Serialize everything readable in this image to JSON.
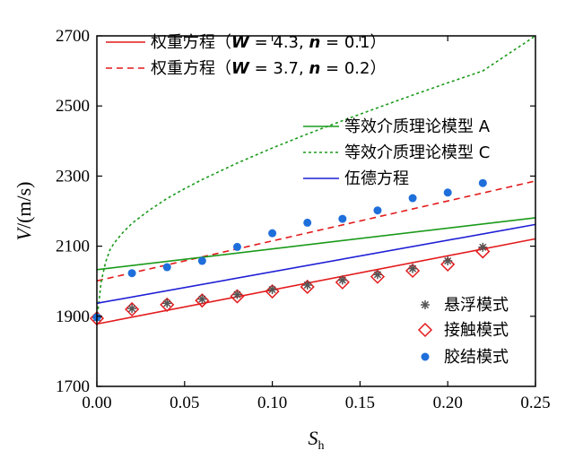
{
  "chart_data": {
    "type": "scatter",
    "xlabel_main": "S",
    "xlabel_sub": "h",
    "ylabel_main": "V",
    "ylabel_unit": "/(m/s)",
    "xlim": [
      0,
      0.25
    ],
    "ylim": [
      1700,
      2700
    ],
    "xticks": [
      "0.00",
      "0.05",
      "0.10",
      "0.15",
      "0.20",
      "0.25"
    ],
    "yticks": [
      "1700",
      "1900",
      "2100",
      "2300",
      "2500",
      "2700"
    ],
    "grid": false,
    "line_series": [
      {
        "name": "权重方程（W = 4.3, n = 0.1）",
        "legend_prefix": "权重方程（",
        "p1": "W",
        "v1": " = 4.3, ",
        "p2": "n",
        "v2": " = 0.1）",
        "color": "#e31a1c",
        "dash": "",
        "x": [
          0,
          0.25
        ],
        "y": [
          1878,
          2121
        ]
      },
      {
        "name": "权重方程（W = 3.7, n = 0.2）",
        "legend_prefix": "权重方程（",
        "p1": "W",
        "v1": " = 3.7, ",
        "p2": "n",
        "v2": " = 0.2）",
        "color": "#e31a1c",
        "dash": "7,5",
        "x": [
          0,
          0.25
        ],
        "y": [
          2001,
          2286
        ]
      },
      {
        "name": "等效介质理论模型 A",
        "color": "#1a9a1a",
        "dash": "",
        "x": [
          0,
          0.25
        ],
        "y": [
          2033,
          2181
        ]
      },
      {
        "name": "等效介质理论模型 C",
        "color": "#1a9a1a",
        "dash": "3,3",
        "x": [
          0,
          0.0025,
          0.005,
          0.0075,
          0.01,
          0.015,
          0.02,
          0.03,
          0.04,
          0.05,
          0.06,
          0.08,
          0.1,
          0.12,
          0.14,
          0.16,
          0.18,
          0.2,
          0.22,
          0.25
        ],
        "y": [
          1890,
          2000,
          2055,
          2090,
          2110,
          2140,
          2165,
          2203,
          2236,
          2264,
          2290,
          2337,
          2380,
          2420,
          2458,
          2495,
          2531,
          2566,
          2600,
          2700
        ]
      },
      {
        "name": "伍德方程",
        "color": "#1f1fd6",
        "dash": "",
        "x": [
          0,
          0.25
        ],
        "y": [
          1937,
          2162
        ]
      }
    ],
    "marker_series": [
      {
        "name": "悬浮模式",
        "marker": "asterisk",
        "color": "#555555",
        "x": [
          0,
          0.02,
          0.04,
          0.06,
          0.08,
          0.1,
          0.12,
          0.14,
          0.16,
          0.18,
          0.2,
          0.22
        ],
        "y": [
          1896,
          1922,
          1937,
          1949,
          1962,
          1976,
          1989,
          2003,
          2019,
          2036,
          2058,
          2097
        ]
      },
      {
        "name": "接触模式",
        "marker": "diamond",
        "color": "#e31a1c",
        "x": [
          0,
          0.02,
          0.04,
          0.06,
          0.08,
          0.1,
          0.12,
          0.14,
          0.16,
          0.18,
          0.2,
          0.22
        ],
        "y": [
          1894,
          1920,
          1933,
          1945,
          1957,
          1971,
          1984,
          1997,
          2013,
          2030,
          2048,
          2085
        ]
      },
      {
        "name": "胶结模式",
        "marker": "circle",
        "color": "#1f6fdb",
        "x": [
          0,
          0.02,
          0.04,
          0.06,
          0.08,
          0.1,
          0.12,
          0.14,
          0.16,
          0.18,
          0.2,
          0.22
        ],
        "y": [
          1897,
          2023,
          2040,
          2058,
          2098,
          2137,
          2167,
          2178,
          2202,
          2237,
          2253,
          2280
        ]
      }
    ]
  }
}
